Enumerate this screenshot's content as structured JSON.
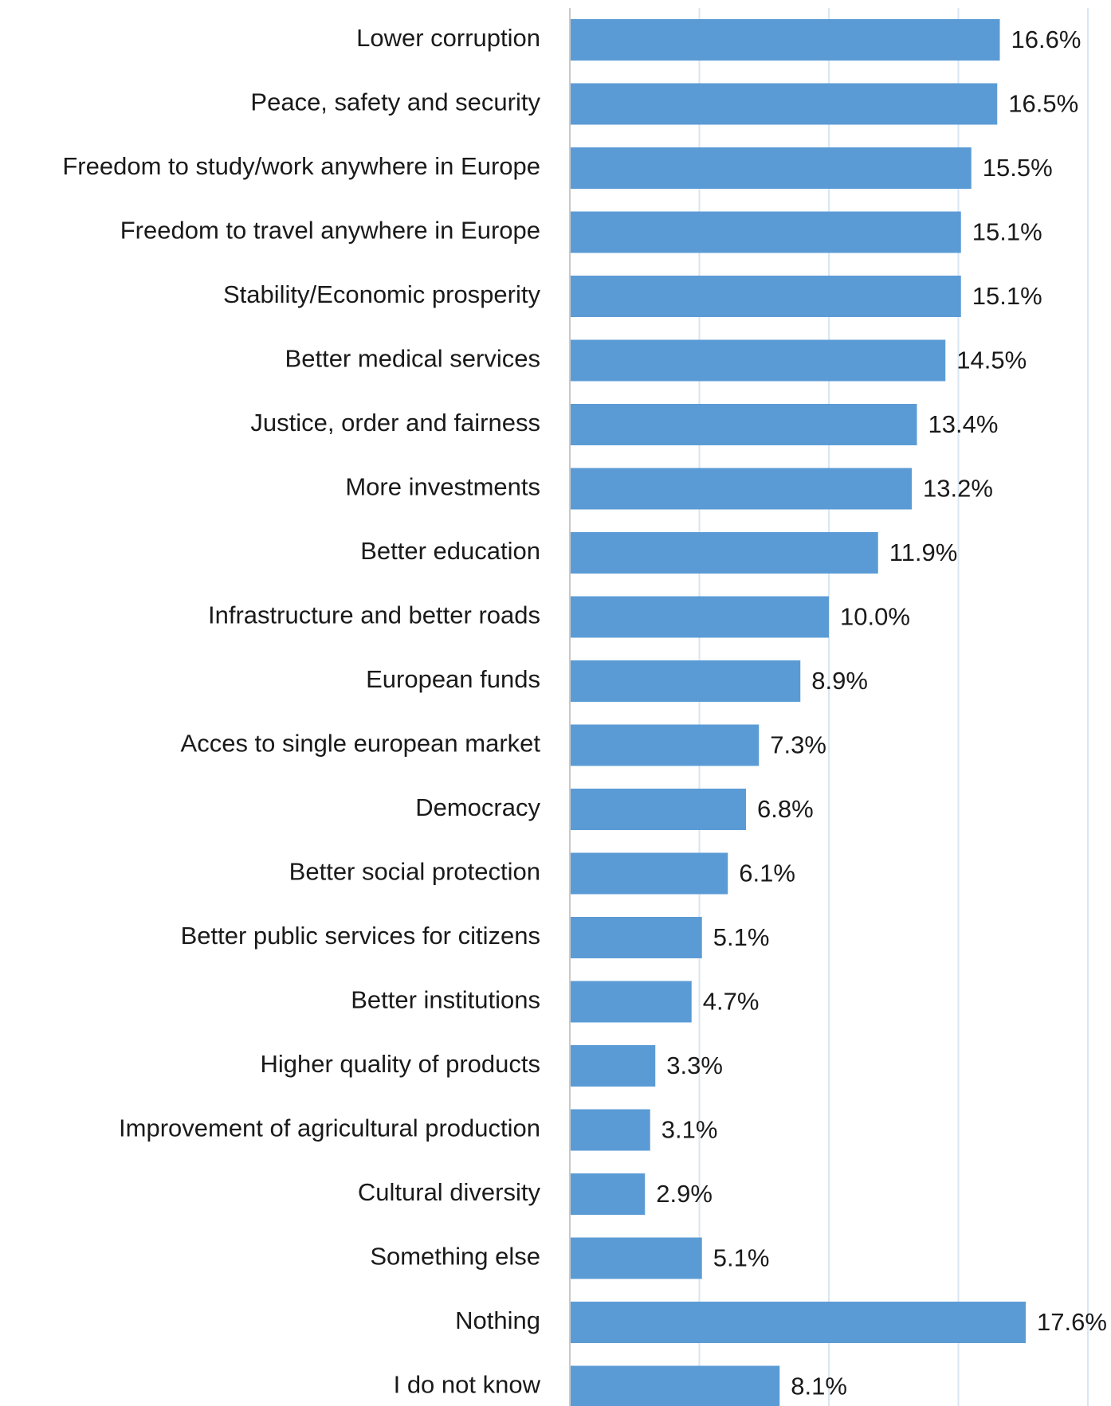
{
  "chart_data": {
    "type": "bar",
    "orientation": "horizontal",
    "categories": [
      "Lower corruption",
      "Peace, safety and security",
      "Freedom to study/work anywhere in Europe",
      "Freedom to travel anywhere in Europe",
      "Stability/Economic prosperity",
      "Better medical services",
      "Justice, order and fairness",
      "More investments",
      "Better education",
      "Infrastructure and better roads",
      "European funds",
      "Acces to single european market",
      "Democracy",
      "Better social protection",
      "Better public services for citizens",
      "Better institutions",
      "Higher quality of products",
      "Improvement of agricultural production",
      "Cultural diversity",
      "Something else",
      "Nothing",
      "I do not know"
    ],
    "values": [
      16.6,
      16.5,
      15.5,
      15.1,
      15.1,
      14.5,
      13.4,
      13.2,
      11.9,
      10.0,
      8.9,
      7.3,
      6.8,
      6.1,
      5.1,
      4.7,
      3.3,
      3.1,
      2.9,
      5.1,
      17.6,
      8.1
    ],
    "value_labels": [
      "16.6%",
      "16.5%",
      "15.5%",
      "15.1%",
      "15.1%",
      "14.5%",
      "13.4%",
      "13.2%",
      "11.9%",
      "10.0%",
      "8.9%",
      "7.3%",
      "6.8%",
      "6.1%",
      "5.1%",
      "4.7%",
      "3.3%",
      "3.1%",
      "2.9%",
      "5.1%",
      "17.6%",
      "8.1%"
    ],
    "xlim": [
      0,
      20
    ],
    "grid_step": 5,
    "grid": true,
    "bar_color": "#5b9bd5",
    "gridline_color": "#d9e6f2"
  }
}
